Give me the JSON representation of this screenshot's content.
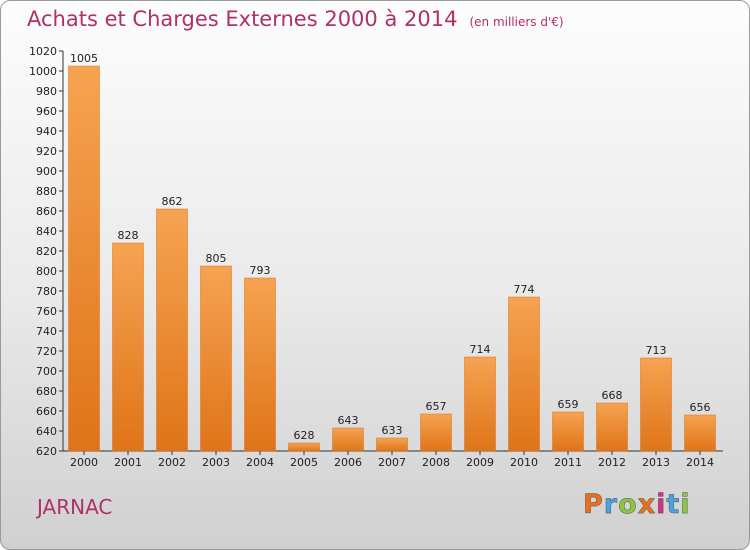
{
  "chart_data": {
    "type": "bar",
    "title": "Achats et Charges Externes 2000 à 2014",
    "subtitle": "(en milliers d'€)",
    "categories": [
      "2000",
      "2001",
      "2002",
      "2003",
      "2004",
      "2005",
      "2006",
      "2007",
      "2008",
      "2009",
      "2010",
      "2011",
      "2012",
      "2013",
      "2014"
    ],
    "values": [
      1005,
      828,
      862,
      805,
      793,
      628,
      643,
      633,
      657,
      714,
      774,
      659,
      668,
      713,
      656
    ],
    "ylim": [
      620,
      1020
    ],
    "ytick_step": 20,
    "grid": false,
    "xlabel": "",
    "ylabel": "",
    "bar_color": "#f0923a"
  },
  "footer": {
    "place": "JARNAC",
    "brand": "Proxiti",
    "brand_colors": [
      "#e8701c",
      "#4aa3df",
      "#8cc63f",
      "#e8701c",
      "#d62f8a",
      "#4aa3df",
      "#8cc63f"
    ]
  }
}
